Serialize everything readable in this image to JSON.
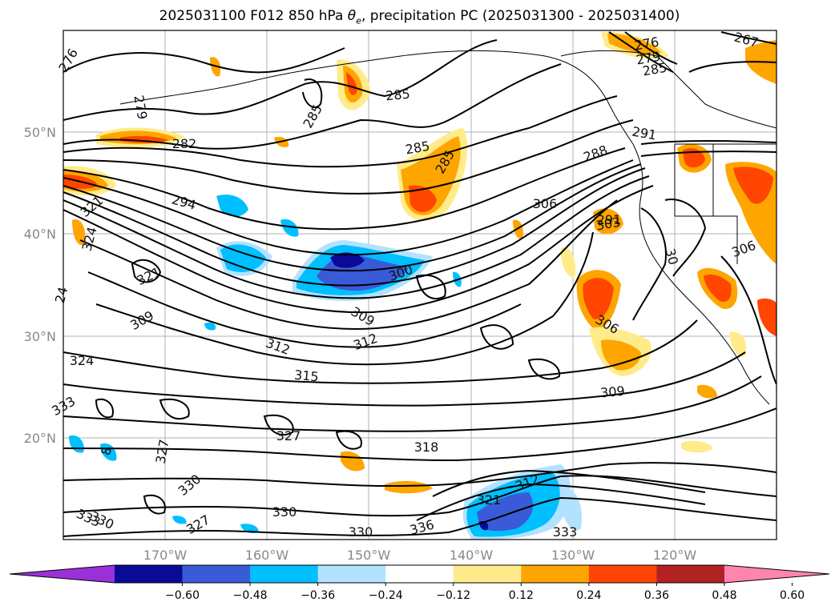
{
  "title": {
    "prefix": "2025031100 F012 850 hPa ",
    "theta": "θ",
    "theta_sub": "e",
    "suffix": ", precipitation PC (2025031300 - 2025031400)"
  },
  "map": {
    "lon_range": [
      -180,
      -110
    ],
    "lat_range": [
      10,
      60
    ],
    "lat_labels": [
      "50°N",
      "40°N",
      "30°N",
      "20°N"
    ],
    "lon_labels": [
      "170°W",
      "160°W",
      "150°W",
      "140°W",
      "130°W",
      "120°W"
    ],
    "grid": true,
    "contour_color": "#000000",
    "coastline_color": "#000000"
  },
  "contour_labels": [
    "276",
    "279",
    "282",
    "285",
    "285",
    "285",
    "285",
    "267",
    "276",
    "279",
    "285",
    "291",
    "288",
    "294",
    "321",
    "324",
    "321",
    "309",
    "300",
    "309",
    "312",
    "312",
    "315",
    "306",
    "306",
    "309",
    "324",
    "327",
    "327",
    "330",
    "318",
    "312",
    "321",
    "333",
    "330",
    "333",
    "336",
    "330",
    "327",
    "330",
    "333",
    "24",
    "8",
    "30",
    "303",
    "291",
    "306"
  ],
  "colorbar": {
    "ticks": [
      "−0.60",
      "−0.48",
      "−0.36",
      "−0.24",
      "−0.12",
      "0.12",
      "0.24",
      "0.36",
      "0.48",
      "0.60"
    ],
    "colors": [
      "#9b30d9",
      "#0a0a96",
      "#3a5bd8",
      "#00bfff",
      "#b2e2ff",
      "#ffffff",
      "#ffeb8a",
      "#ffa500",
      "#ff4500",
      "#b22222",
      "#ff85ad"
    ],
    "extend": "both"
  }
}
